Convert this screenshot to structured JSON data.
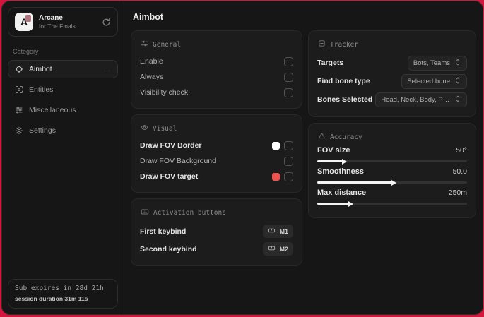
{
  "sidebar": {
    "app": {
      "logo_letter": "A",
      "name": "Arcane",
      "subtitle": "for The Finals"
    },
    "category_label": "Category",
    "items": [
      {
        "label": "Aimbot",
        "icon": "crosshair-icon",
        "active": true
      },
      {
        "label": "Entities",
        "icon": "entities-icon",
        "active": false
      },
      {
        "label": "Miscellaneous",
        "icon": "sliders-icon",
        "active": false
      },
      {
        "label": "Settings",
        "icon": "gear-icon",
        "active": false
      }
    ],
    "status": {
      "sub_line": "Sub expires in 28d 21h",
      "session_line": "session duration 31m 11s"
    }
  },
  "main": {
    "title": "Aimbot",
    "panels": {
      "general": {
        "title": "General",
        "rows": [
          {
            "label": "Enable",
            "checked": false
          },
          {
            "label": "Always",
            "checked": false
          },
          {
            "label": "Visibility check",
            "checked": false
          }
        ]
      },
      "visual": {
        "title": "Visual",
        "rows": [
          {
            "label": "Draw FOV Border",
            "swatch": "#ffffff",
            "checked": false
          },
          {
            "label": "Draw FOV Background",
            "swatch": null,
            "checked": false
          },
          {
            "label": "Draw FOV target",
            "swatch": "#ef5350",
            "checked": false
          }
        ]
      },
      "activation": {
        "title": "Activation buttons",
        "rows": [
          {
            "label": "First keybind",
            "key": "M1"
          },
          {
            "label": "Second keybind",
            "key": "M2"
          }
        ]
      },
      "tracker": {
        "title": "Tracker",
        "rows": [
          {
            "label": "Targets",
            "value": "Bots, Teams"
          },
          {
            "label": "Find bone type",
            "value": "Selected bone"
          },
          {
            "label": "Bones Selected",
            "value": "Head, Neck, Body, Pe..."
          }
        ]
      },
      "accuracy": {
        "title": "Accuracy",
        "rows": [
          {
            "label": "FOV size",
            "value": "50°",
            "percent": 17
          },
          {
            "label": "Smoothness",
            "value": "50.0",
            "percent": 50
          },
          {
            "label": "Max distance",
            "value": "250m",
            "percent": 21
          }
        ]
      }
    }
  },
  "colors": {
    "background_red": "#d4163c",
    "accent_red": "#ef5350",
    "swatch_white": "#ffffff"
  }
}
